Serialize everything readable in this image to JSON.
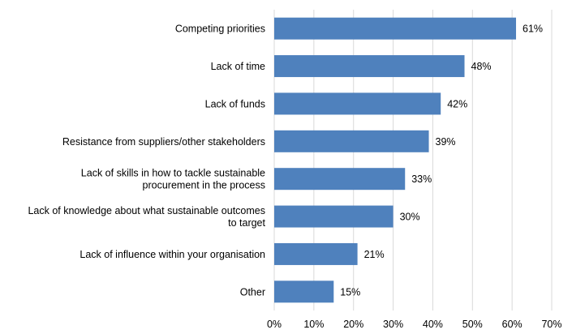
{
  "chart_data": {
    "type": "bar",
    "orientation": "horizontal",
    "categories": [
      [
        "Competing priorities"
      ],
      [
        "Lack of time"
      ],
      [
        "Lack of funds"
      ],
      [
        "Resistance from suppliers/other stakeholders"
      ],
      [
        "Lack of skills in how to tackle sustainable",
        "procurement in the process"
      ],
      [
        "Lack of knowledge about what sustainable outcomes",
        "to target"
      ],
      [
        "Lack of influence within your organisation"
      ],
      [
        "Other"
      ]
    ],
    "values": [
      61,
      48,
      42,
      39,
      33,
      30,
      21,
      15
    ],
    "data_labels": [
      "61%",
      "48%",
      "42%",
      "39%",
      "33%",
      "30%",
      "21%",
      "15%"
    ],
    "xticks": [
      0,
      10,
      20,
      30,
      40,
      50,
      60,
      70
    ],
    "xtick_labels": [
      "0%",
      "10%",
      "20%",
      "30%",
      "40%",
      "50%",
      "60%",
      "70%"
    ],
    "xlim": [
      0,
      70
    ],
    "grid": "vertical",
    "legend": "none",
    "title": "",
    "xlabel": "",
    "ylabel": "",
    "colors": {
      "bar": "#4f81bd",
      "grid": "#d9d9d9"
    }
  }
}
